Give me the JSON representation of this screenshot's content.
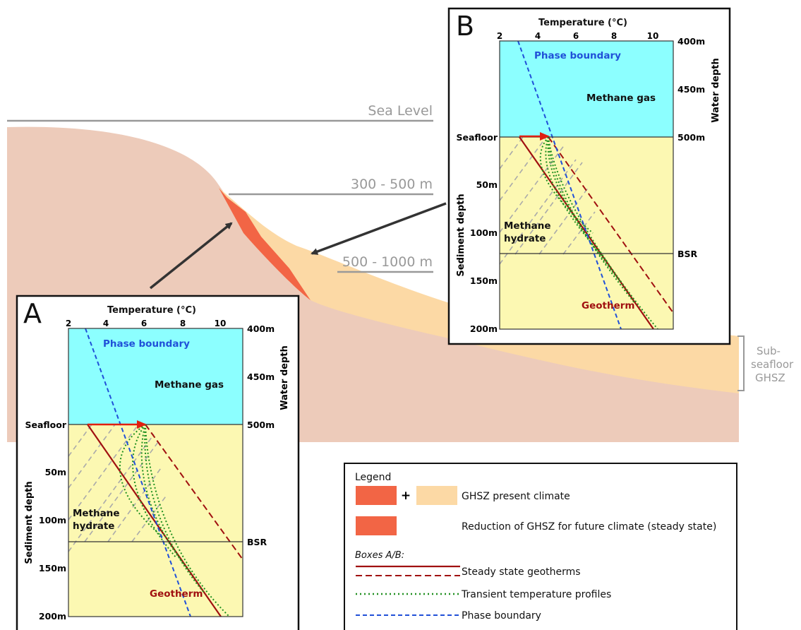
{
  "scene": {
    "sea_level_label": "Sea Level",
    "depth_label_1": "300 - 500 m",
    "depth_label_2": "500 - 1000 m",
    "bracket_label": [
      "Sub-",
      "seafloor",
      "GHSZ"
    ],
    "colors": {
      "seabed": "#EDCBBA",
      "ghsz": "#FCD9A5",
      "reduction": "#F26545",
      "water": "#8CFFFF",
      "sediment": "#FCF8B2",
      "geotherm": "#A01010",
      "phase": "#2050D8",
      "transient": "#209020",
      "arrow": "#E02010"
    }
  },
  "boxA": {
    "letter": "A",
    "axis_title": "Temperature (°C)",
    "ticks": [
      "2",
      "4",
      "6",
      "8",
      "10"
    ],
    "water_ticks": [
      "400m",
      "450m",
      "500m"
    ],
    "water_axis_label": "Water depth",
    "sed_ticks": [
      "50m",
      "100m",
      "150m",
      "200m"
    ],
    "sed_axis_label": "Sediment depth",
    "seafloor": "Seafloor",
    "bsr": "BSR",
    "phase_boundary": "Phase boundary",
    "methane_gas": "Methane gas",
    "methane_hydrate": [
      "Methane",
      "hydrate"
    ],
    "geotherm": "Geotherm"
  },
  "boxB": {
    "letter": "B",
    "axis_title": "Temperature (°C)",
    "ticks": [
      "2",
      "4",
      "6",
      "8",
      "10"
    ],
    "water_ticks": [
      "400m",
      "450m",
      "500m"
    ],
    "water_axis_label": "Water depth",
    "sed_ticks": [
      "50m",
      "100m",
      "150m",
      "200m"
    ],
    "sed_axis_label": "Sediment depth",
    "seafloor": "Seafloor",
    "bsr": "BSR",
    "phase_boundary": "Phase boundary",
    "methane_gas": "Methane gas",
    "methane_hydrate": [
      "Methane",
      "hydrate"
    ],
    "geotherm": "Geotherm"
  },
  "legend": {
    "title": "Legend",
    "plus": "+",
    "present": "GHSZ present climate",
    "reduction": "Reduction of GHSZ for future climate (steady state)",
    "boxes_title": "Boxes A/B:",
    "steady": "Steady state geotherms",
    "transient": "Transient temperature profiles",
    "phase": "Phase boundary"
  }
}
